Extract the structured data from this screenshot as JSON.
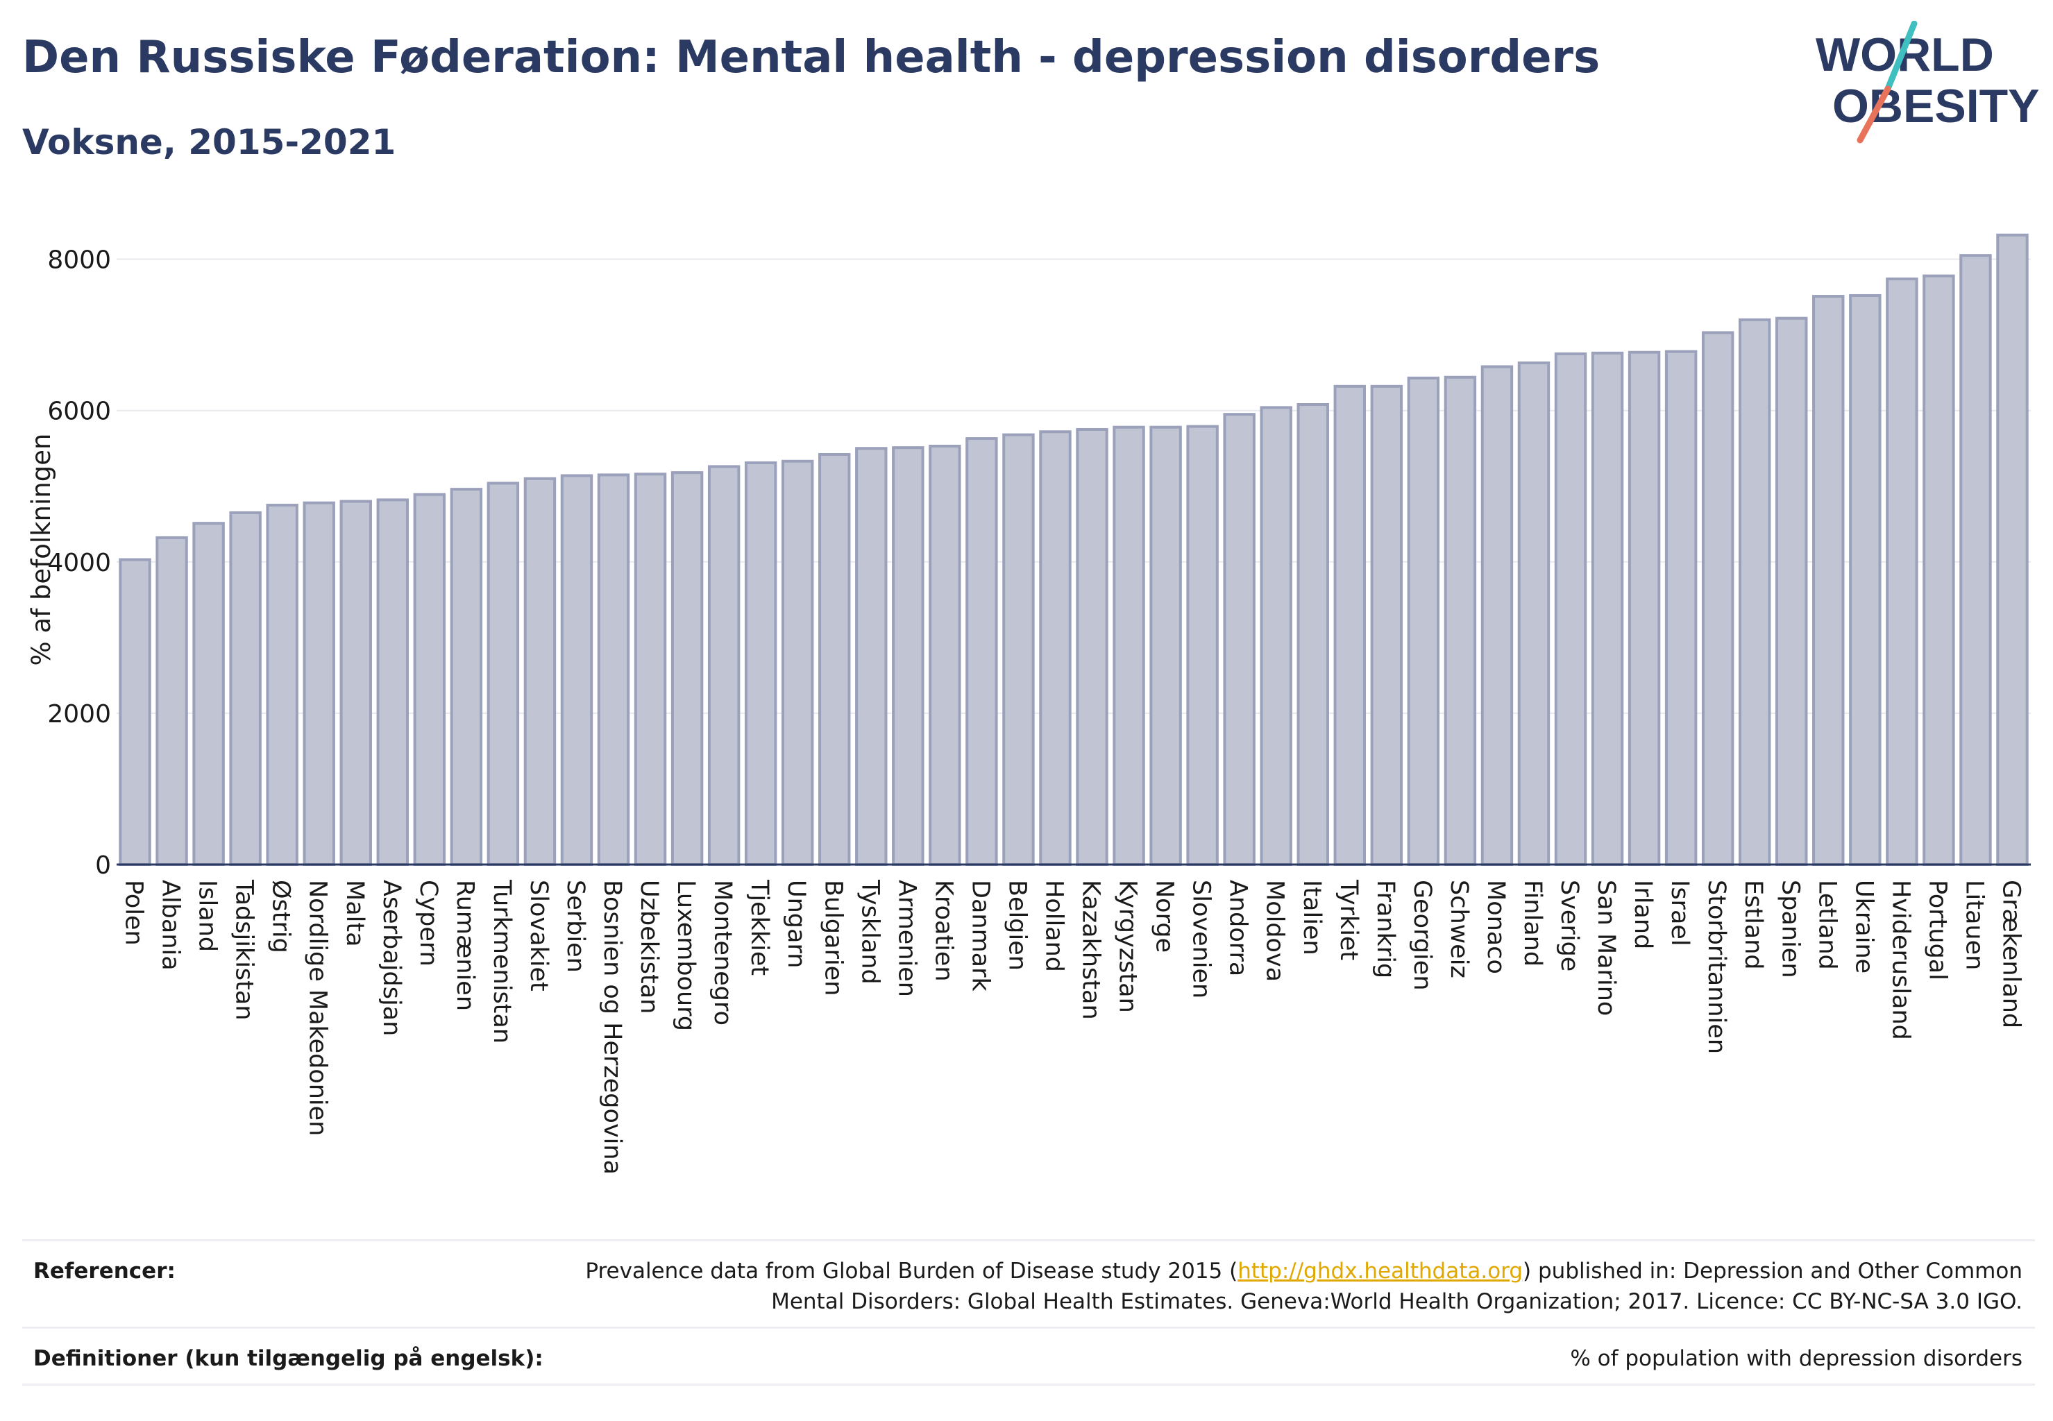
{
  "header": {
    "title": "Den Russiske Føderation: Mental health - depression disorders",
    "subtitle": "Voksne, 2015-2021"
  },
  "logo": {
    "line1": "WORLD",
    "line2": "OBESITY"
  },
  "colors": {
    "bar_fill": "#c0c4d3",
    "bar_stroke": "#9ba1bb",
    "text_dark": "#2b3a63",
    "grid": "#e8e9ee",
    "logo_teal": "#3fbfbf",
    "logo_coral": "#e8735a",
    "link": "#e0a800"
  },
  "chart_data": {
    "type": "bar",
    "ylabel": "% af befolkningen",
    "xlabel": "",
    "ylim": [
      0,
      8400
    ],
    "yticks": [
      0,
      2000,
      4000,
      6000,
      8000
    ],
    "grid": true,
    "categories": [
      "Polen",
      "Albania",
      "Island",
      "Tadsjikistan",
      "Østrig",
      "Nordlige Makedonien",
      "Malta",
      "Aserbajdsjan",
      "Cypern",
      "Rumænien",
      "Turkmenistan",
      "Slovakiet",
      "Serbien",
      "Bosnien og Herzegovina",
      "Uzbekistan",
      "Luxembourg",
      "Montenegro",
      "Tjekkiet",
      "Ungarn",
      "Bulgarien",
      "Tyskland",
      "Armenien",
      "Kroatien",
      "Danmark",
      "Belgien",
      "Holland",
      "Kazakhstan",
      "Kyrgyzstan",
      "Norge",
      "Slovenien",
      "Andorra",
      "Moldova",
      "Italien",
      "Tyrkiet",
      "Frankrig",
      "Georgien",
      "Schweiz",
      "Monaco",
      "Finland",
      "Sverige",
      "San Marino",
      "Irland",
      "Israel",
      "Storbritannien",
      "Estland",
      "Spanien",
      "Letland",
      "Ukraine",
      "Hviderusland",
      "Portugal",
      "Litauen",
      "Grækenland"
    ],
    "values": [
      4030,
      4320,
      4510,
      4650,
      4750,
      4780,
      4800,
      4820,
      4890,
      4960,
      5040,
      5100,
      5140,
      5150,
      5160,
      5180,
      5260,
      5310,
      5330,
      5420,
      5500,
      5510,
      5530,
      5630,
      5680,
      5720,
      5750,
      5780,
      5780,
      5790,
      5950,
      6040,
      6080,
      6320,
      6320,
      6430,
      6440,
      6580,
      6630,
      6750,
      6760,
      6770,
      6780,
      7030,
      7200,
      7220,
      7510,
      7520,
      7740,
      7780,
      8050,
      8320
    ]
  },
  "references": {
    "ref_label": "Referencer:",
    "ref_text_before": "Prevalence data from Global Burden of Disease study 2015 (",
    "ref_link": "http://ghdx.healthdata.org",
    "ref_text_after": ") published in: Depression and Other Common",
    "ref_text_line2": "Mental Disorders: Global Health Estimates. Geneva:World Health Organization; 2017. Licence: CC BY-NC-SA 3.0 IGO.",
    "def_label": "Definitioner (kun tilgængelig på engelsk):",
    "def_text": "% of population with depression disorders"
  }
}
